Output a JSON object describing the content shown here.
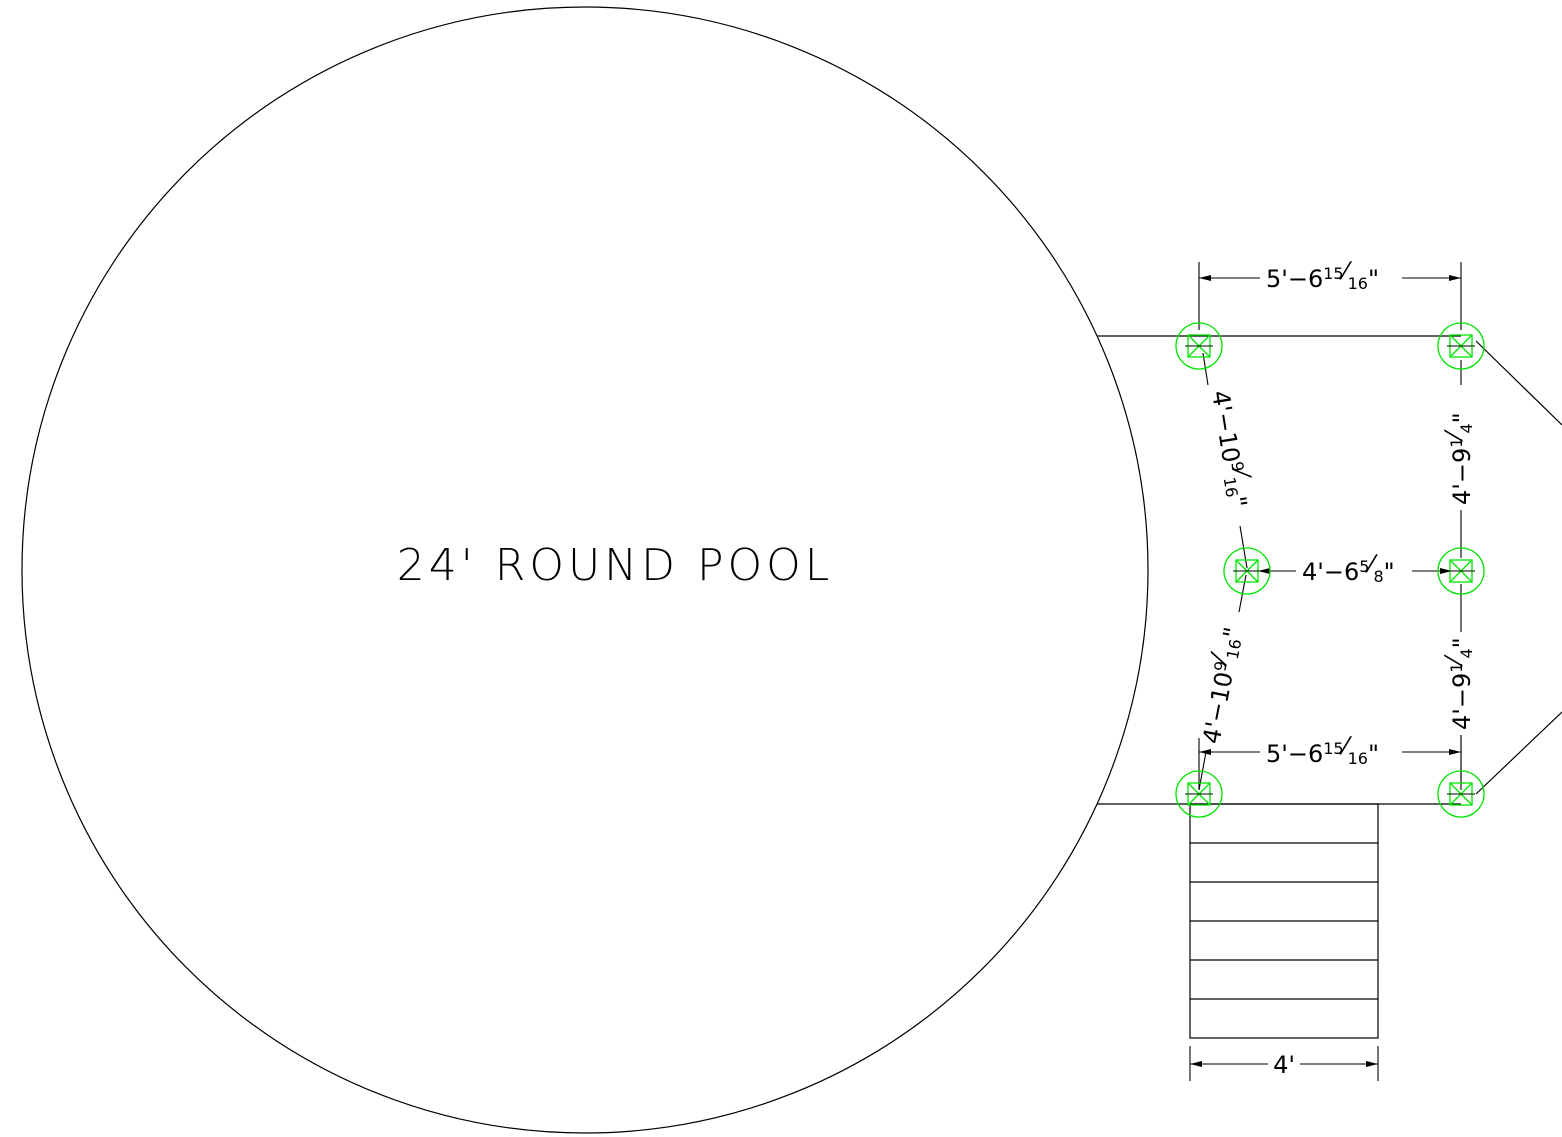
{
  "drawing": {
    "pool_label": "24' ROUND POOL",
    "dimensions": {
      "top_width": {
        "whole": "5'−6",
        "num": "15",
        "den": "16",
        "unit": "\""
      },
      "bottom_width": {
        "whole": "5'−6",
        "num": "15",
        "den": "16",
        "unit": "\""
      },
      "left_upper_diagonal": {
        "whole": "4'−10",
        "num": "9",
        "den": "16",
        "unit": "\""
      },
      "left_lower_diagonal": {
        "whole": "4'−10",
        "num": "9",
        "den": "16",
        "unit": "\""
      },
      "middle_width": {
        "whole": "4'−6",
        "num": "5",
        "den": "8",
        "unit": "\""
      },
      "right_upper_height": {
        "whole": "4'−9",
        "num": "1",
        "den": "4",
        "unit": "\""
      },
      "right_lower_height": {
        "whole": "4'−9",
        "num": "1",
        "den": "4",
        "unit": "\""
      },
      "stair_width": "4'"
    },
    "stair_tread_count": 6,
    "post_count": 6,
    "colors": {
      "lines": "#000000",
      "posts": "#00e600",
      "background": "#ffffff"
    },
    "icons": {
      "post": "post-footing-icon"
    }
  }
}
